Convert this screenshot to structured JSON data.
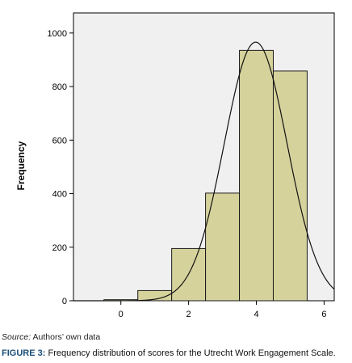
{
  "chart_data": {
    "type": "bar",
    "subtype": "histogram-with-normal-curve",
    "xlabel": "",
    "ylabel": "Frequency",
    "xlim": [
      -1.4,
      6.3
    ],
    "ylim": [
      0,
      1075
    ],
    "x_ticks": [
      0,
      2,
      4,
      6
    ],
    "y_ticks": [
      0,
      200,
      400,
      600,
      800,
      1000
    ],
    "bins": [
      {
        "from": -0.5,
        "to": 0.5,
        "value": 4
      },
      {
        "from": 0.5,
        "to": 1.5,
        "value": 38
      },
      {
        "from": 1.5,
        "to": 2.5,
        "value": 195
      },
      {
        "from": 2.5,
        "to": 3.5,
        "value": 402
      },
      {
        "from": 3.5,
        "to": 4.5,
        "value": 935
      },
      {
        "from": 4.5,
        "to": 5.5,
        "value": 858
      }
    ],
    "normal_curve": {
      "mean": 3.98,
      "sd": 0.93,
      "peak": 966
    },
    "grid": false,
    "colors": {
      "bar_fill": "#d6d29c",
      "bar_edge": "#1a1a1a",
      "plot_bg": "#f0f0f0",
      "curve": "#111111"
    }
  },
  "source": {
    "label": "Source:",
    "text": "Authors’ own data"
  },
  "caption": {
    "label": "FIGURE 3:",
    "text": "Frequency distribution of scores for the Utrecht Work Engagement Scale."
  }
}
